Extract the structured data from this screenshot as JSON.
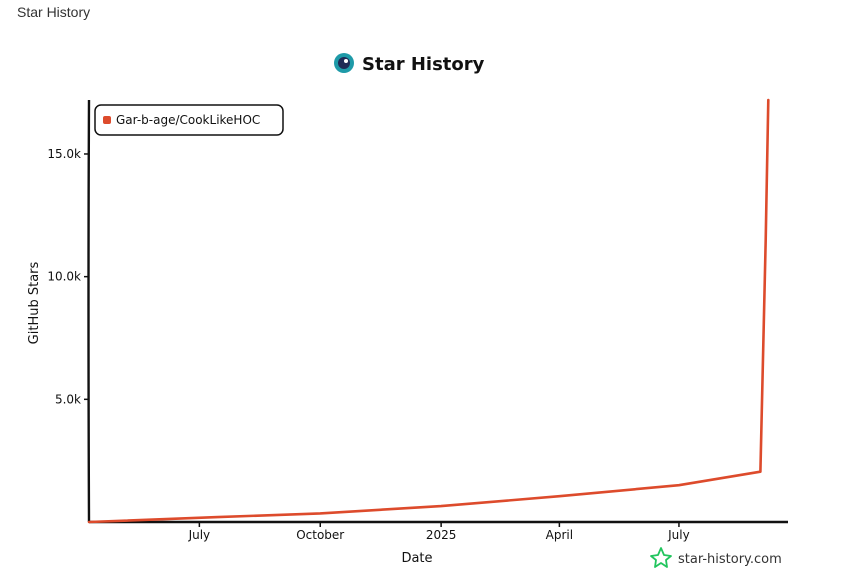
{
  "page": {
    "title": "Star History"
  },
  "header": {
    "title": "Star History",
    "logo_icon": "star-history-logo-icon"
  },
  "watermark": {
    "text": "star-history.com",
    "icon": "star-outline-icon",
    "color": "#22c55e"
  },
  "chart_data": {
    "type": "line",
    "title": "Star History",
    "xlabel": "Date",
    "ylabel": "GitHub Stars",
    "x_ticks": [
      "July",
      "October",
      "2025",
      "April",
      "July"
    ],
    "y_ticks": [
      "5.0k",
      "10.0k",
      "15.0k"
    ],
    "ylim": [
      0,
      17200
    ],
    "xlim": [
      "2024-04-08",
      "2025-09-22"
    ],
    "legend_position": "top-left",
    "series": [
      {
        "name": "Gar-b-age/CookLikeHOC",
        "color": "#dd4b2c",
        "points": [
          {
            "x": "2024-04-08",
            "y": 0
          },
          {
            "x": "2024-07-15",
            "y": 200
          },
          {
            "x": "2024-10-01",
            "y": 350
          },
          {
            "x": "2025-01-01",
            "y": 650
          },
          {
            "x": "2025-04-01",
            "y": 1050
          },
          {
            "x": "2025-07-01",
            "y": 1500
          },
          {
            "x": "2025-09-01",
            "y": 2050
          },
          {
            "x": "2025-09-05",
            "y": 11500
          },
          {
            "x": "2025-09-07",
            "y": 17200
          }
        ]
      }
    ]
  }
}
